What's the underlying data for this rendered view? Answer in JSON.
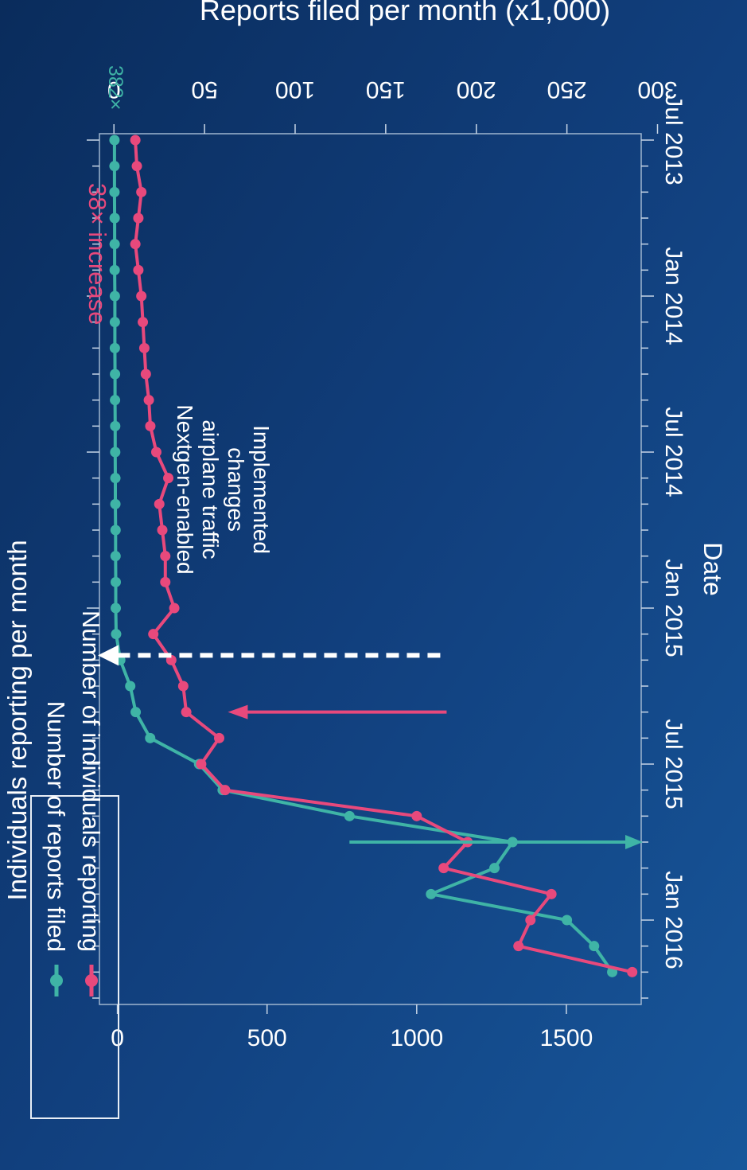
{
  "chart_data": {
    "type": "line",
    "rotation": "rotated 90 degrees clockwise (page shown in portrait)",
    "title": "",
    "xlabel": "Date",
    "ylabel_left": "Individuals reporting per month",
    "ylabel_right": "Reports filed per month (x1,000)",
    "x_ticks": [
      "Jul 2013",
      "Jan 2014",
      "Jul 2014",
      "Jan 2015",
      "Jul 2015",
      "Jan 2016"
    ],
    "x_range": [
      "2013-07",
      "2016-04"
    ],
    "y_left_ticks": [
      0,
      500,
      1000,
      1500
    ],
    "y_left_range": [
      -60,
      1750
    ],
    "y_right_ticks": [
      0,
      50,
      100,
      150,
      200,
      250,
      300
    ],
    "y_right_range": [
      -8,
      291
    ],
    "legend_placement": "top-left",
    "legend": [
      "Number of reports filed",
      "Number of individuals reporting"
    ],
    "series": [
      {
        "name": "Number of reports filed",
        "axis": "right",
        "color": "#3fb4a6",
        "x": [
          "2013-07",
          "2013-08",
          "2013-09",
          "2013-10",
          "2013-11",
          "2013-12",
          "2014-01",
          "2014-02",
          "2014-03",
          "2014-04",
          "2014-05",
          "2014-06",
          "2014-07",
          "2014-08",
          "2014-09",
          "2014-10",
          "2014-11",
          "2014-12",
          "2015-01",
          "2015-02",
          "2015-03",
          "2015-04",
          "2015-05",
          "2015-06",
          "2015-07",
          "2015-08",
          "2015-09",
          "2015-10",
          "2015-11",
          "2015-12",
          "2016-01",
          "2016-02",
          "2016-03"
        ],
        "values": [
          0.3,
          0.3,
          0.3,
          0.4,
          0.4,
          0.4,
          0.5,
          0.5,
          0.5,
          0.6,
          0.6,
          0.7,
          0.7,
          0.8,
          0.8,
          0.9,
          0.9,
          1.0,
          1.0,
          1.2,
          3.5,
          9,
          12,
          20,
          47,
          60,
          130,
          220,
          210,
          175,
          250,
          265,
          275
        ]
      },
      {
        "name": "Number of individuals reporting",
        "axis": "left",
        "color": "#e8497c",
        "x": [
          "2013-07",
          "2013-08",
          "2013-09",
          "2013-10",
          "2013-11",
          "2013-12",
          "2014-01",
          "2014-02",
          "2014-03",
          "2014-04",
          "2014-05",
          "2014-06",
          "2014-07",
          "2014-08",
          "2014-09",
          "2014-10",
          "2014-11",
          "2014-12",
          "2015-01",
          "2015-02",
          "2015-03",
          "2015-04",
          "2015-05",
          "2015-06",
          "2015-07",
          "2015-08",
          "2015-09",
          "2015-10",
          "2015-11",
          "2015-12",
          "2016-01",
          "2016-02",
          "2016-03"
        ],
        "values": [
          60,
          65,
          80,
          70,
          60,
          70,
          80,
          85,
          90,
          95,
          105,
          110,
          130,
          170,
          140,
          150,
          160,
          160,
          190,
          120,
          180,
          220,
          230,
          340,
          280,
          360,
          1000,
          1170,
          1090,
          1450,
          1380,
          1340,
          1720
        ]
      }
    ],
    "annotations": [
      {
        "text": "38× increase",
        "color": "#e8497c"
      },
      {
        "text": "382×",
        "color": "#3fb4a6"
      },
      {
        "text_lines": [
          "Nextgen-enabled",
          "airplane traffic",
          "changes",
          "Implemented"
        ],
        "date": "2015-03",
        "color": "#ffffff"
      }
    ],
    "arrows": [
      {
        "series": "Number of individuals reporting",
        "direction": "toward left axis",
        "at": "2015-05"
      },
      {
        "series": "Number of reports filed",
        "direction": "toward right axis",
        "at": "2015-10"
      }
    ],
    "background": "#0f3f7a"
  }
}
